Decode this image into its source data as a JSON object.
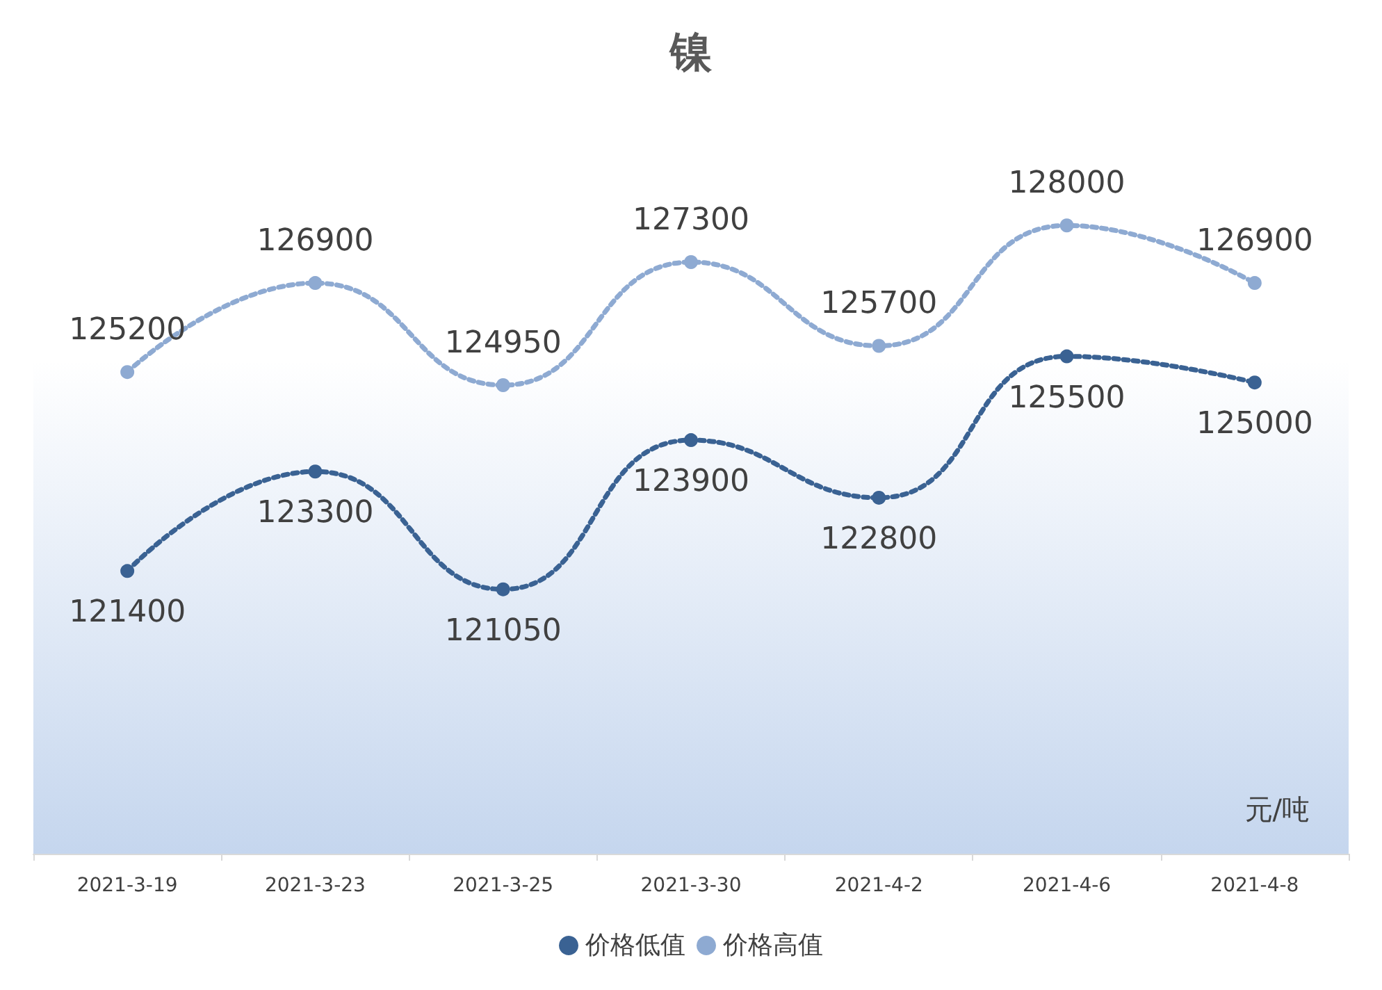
{
  "chart_data": {
    "type": "line",
    "title": "镍",
    "categories": [
      "2021-3-19",
      "2021-3-23",
      "2021-3-25",
      "2021-3-30",
      "2021-4-2",
      "2021-4-6",
      "2021-4-8"
    ],
    "series": [
      {
        "name": "价格低值",
        "color": "#3a6293",
        "values": [
          121400,
          123300,
          121050,
          123900,
          122800,
          125500,
          125000
        ]
      },
      {
        "name": "价格高值",
        "color": "#8eaad2",
        "values": [
          125200,
          126900,
          124950,
          127300,
          125700,
          128000,
          126900
        ]
      }
    ],
    "ylim": [
      116000,
      130500
    ],
    "tick_labels": "x",
    "data_labels": true,
    "legend": "bottom",
    "marker": "circle",
    "line_style": "dotted",
    "grid": false,
    "annotations": [
      "元/吨"
    ]
  }
}
